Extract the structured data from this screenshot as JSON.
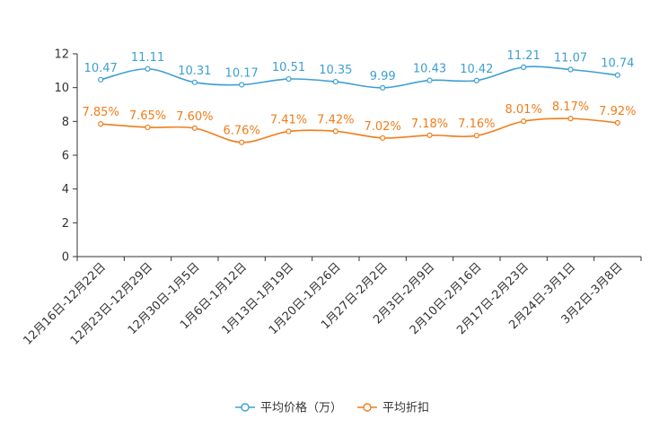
{
  "chart_data": {
    "type": "line",
    "title": "",
    "xlabel": "",
    "ylabel": "",
    "ylim": [
      0,
      12
    ],
    "yticks": [
      0,
      2,
      4,
      6,
      8,
      10,
      12
    ],
    "grid": false,
    "legend": "bottom-center",
    "categories": [
      "12月16日-12月22日",
      "12月23日-12月29日",
      "12月30日-1月5日",
      "1月6日-1月12日",
      "1月13日-1月19日",
      "1月20日-1月26日",
      "1月27日-2月2日",
      "2月3日-2月9日",
      "2月10日-2月16日",
      "2月17日-2月23日",
      "2月24日-3月1日",
      "3月2日-3月8日"
    ],
    "series": [
      {
        "name": "平均价格（万）",
        "color": "#3d9fd3",
        "values": [
          10.47,
          11.11,
          10.31,
          10.17,
          10.51,
          10.35,
          9.99,
          10.43,
          10.42,
          11.21,
          11.07,
          10.74
        ],
        "labels": [
          "10.47",
          "11.11",
          "10.31",
          "10.17",
          "10.51",
          "10.35",
          "9.99",
          "10.43",
          "10.42",
          "11.21",
          "11.07",
          "10.74"
        ]
      },
      {
        "name": "平均折扣",
        "color": "#f07d1a",
        "values": [
          7.85,
          7.65,
          7.6,
          6.76,
          7.41,
          7.42,
          7.02,
          7.18,
          7.16,
          8.01,
          8.17,
          7.92
        ],
        "labels": [
          "7.85%",
          "7.65%",
          "7.60%",
          "6.76%",
          "7.41%",
          "7.42%",
          "7.02%",
          "7.18%",
          "7.16%",
          "8.01%",
          "8.17%",
          "7.92%"
        ]
      }
    ]
  }
}
